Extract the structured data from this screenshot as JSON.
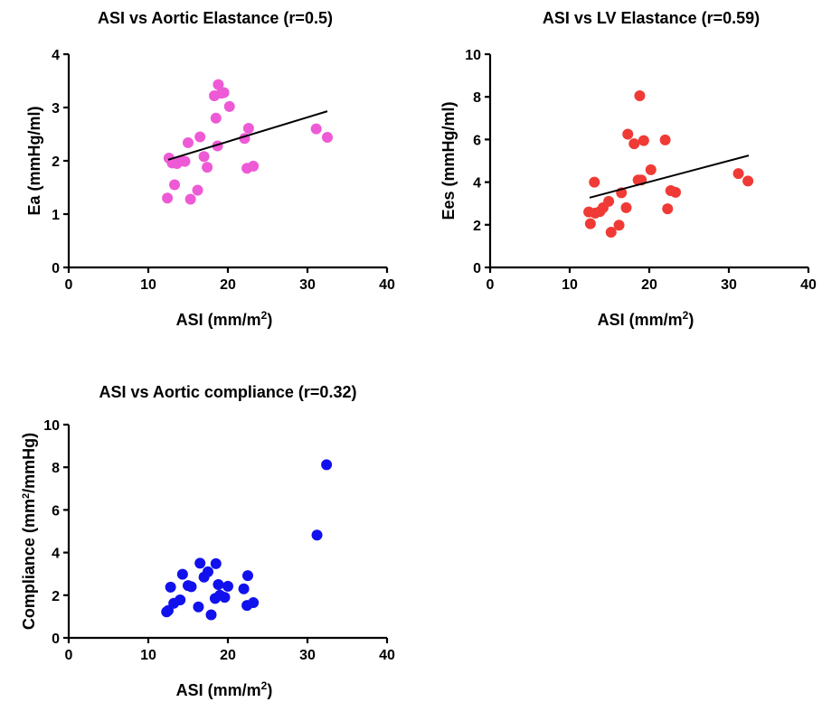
{
  "chart_data": [
    {
      "type": "scatter",
      "title": "ASI vs Aortic Elastance (r=0.5)",
      "xlabel": "ASI (mm/m",
      "xlabel_sup": "2",
      "xlabel_end": ")",
      "ylabel": "Ea (mmHg/ml)",
      "xlim": [
        0,
        40
      ],
      "ylim": [
        0,
        4
      ],
      "xticks": [
        "0",
        "10",
        "20",
        "30",
        "40"
      ],
      "yticks": [
        "0",
        "1",
        "2",
        "3",
        "4"
      ],
      "color": "#ee5ad6",
      "trendline": {
        "x": [
          12.5,
          32.5
        ],
        "y": [
          2.02,
          2.93
        ]
      },
      "x": [
        18.8,
        19.2,
        18.3,
        19.5,
        20.2,
        18.5,
        16.5,
        15.0,
        22.6,
        18.7,
        22.1,
        12.6,
        13.0,
        13.6,
        14.2,
        14.6,
        17.0,
        17.4,
        23.2,
        22.4,
        13.3,
        16.2,
        15.3,
        12.4,
        31.1,
        32.5
      ],
      "y": [
        3.43,
        3.27,
        3.22,
        3.28,
        3.02,
        2.8,
        2.45,
        2.34,
        2.61,
        2.28,
        2.42,
        2.05,
        1.96,
        1.95,
        2.0,
        1.99,
        2.08,
        1.88,
        1.9,
        1.86,
        1.55,
        1.45,
        1.28,
        1.3,
        2.6,
        2.44
      ]
    },
    {
      "type": "scatter",
      "title": "ASI vs LV Elastance (r=0.59)",
      "xlabel": "ASI (mm/m",
      "xlabel_sup": "2",
      "xlabel_end": ")",
      "ylabel": "Ees (mmHg/ml)",
      "xlim": [
        0,
        40
      ],
      "ylim": [
        0,
        10
      ],
      "xticks": [
        "0",
        "10",
        "20",
        "30",
        "40"
      ],
      "yticks": [
        "0",
        "2",
        "4",
        "6",
        "8",
        "10"
      ],
      "color": "#f03a35",
      "trendline": {
        "x": [
          12.5,
          32.5
        ],
        "y": [
          3.27,
          5.25
        ]
      },
      "x": [
        18.8,
        17.3,
        18.1,
        19.3,
        22.0,
        20.2,
        18.6,
        19.0,
        13.1,
        16.5,
        22.7,
        23.3,
        14.9,
        12.4,
        13.2,
        13.8,
        14.2,
        17.1,
        22.3,
        12.6,
        16.2,
        15.2,
        31.2,
        32.4
      ],
      "y": [
        8.05,
        6.25,
        5.8,
        5.95,
        5.98,
        4.58,
        4.1,
        4.1,
        4.0,
        3.5,
        3.6,
        3.52,
        3.1,
        2.6,
        2.55,
        2.62,
        2.8,
        2.8,
        2.75,
        2.05,
        1.98,
        1.65,
        4.4,
        4.05
      ]
    },
    {
      "type": "scatter",
      "title": "ASI vs Aortic compliance (r=0.32)",
      "xlabel": "ASI (mm/m",
      "xlabel_sup": "2",
      "xlabel_end": ")",
      "ylabel": "Compliance (mm",
      "ylabel_sup": "2",
      "ylabel_end": "/mmHg)",
      "xlim": [
        0,
        40
      ],
      "ylim": [
        0,
        10
      ],
      "xticks": [
        "0",
        "10",
        "20",
        "30",
        "40"
      ],
      "yticks": [
        "0",
        "2",
        "4",
        "6",
        "8",
        "10"
      ],
      "color": "#1111ee",
      "trendline": null,
      "x": [
        16.5,
        18.5,
        17.5,
        14.3,
        17.0,
        22.5,
        12.8,
        18.8,
        20.0,
        15.0,
        15.4,
        22.0,
        14.0,
        19.0,
        19.6,
        18.4,
        13.2,
        23.2,
        22.4,
        16.3,
        12.5,
        17.9,
        12.3,
        31.2,
        32.4
      ],
      "y": [
        3.5,
        3.48,
        3.1,
        2.98,
        2.85,
        2.92,
        2.38,
        2.5,
        2.42,
        2.45,
        2.4,
        2.3,
        1.78,
        2.0,
        1.9,
        1.85,
        1.62,
        1.65,
        1.52,
        1.45,
        1.28,
        1.08,
        1.22,
        4.82,
        8.12
      ]
    }
  ]
}
